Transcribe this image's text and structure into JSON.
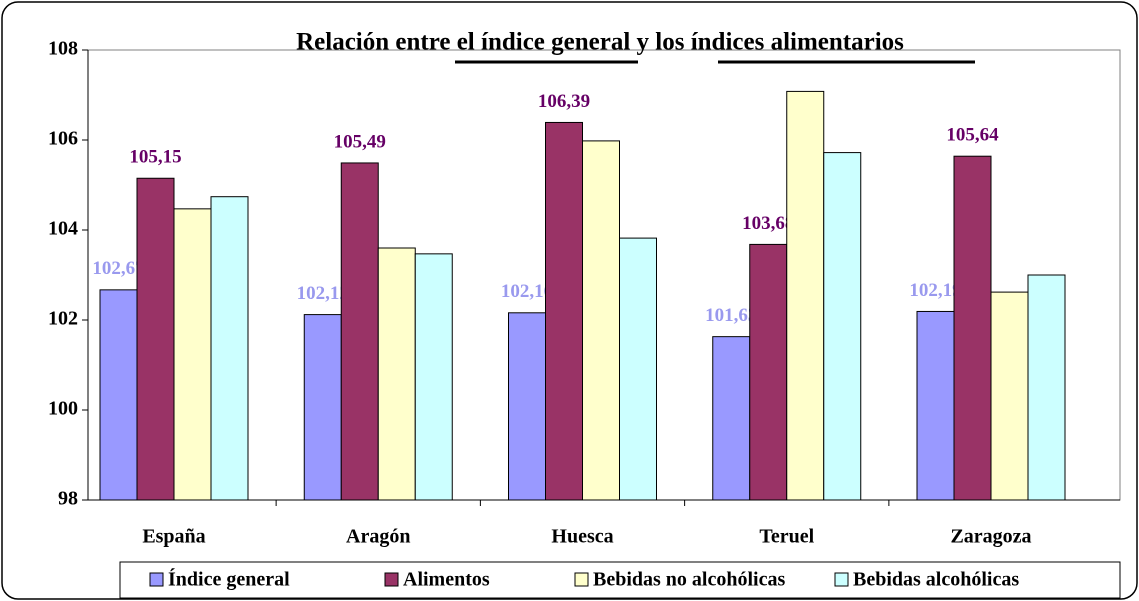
{
  "chart_data": {
    "type": "bar",
    "title": "Relación entre el índice general y los índices alimentarios",
    "categories": [
      "España",
      "Aragón",
      "Huesca",
      "Teruel",
      "Zaragoza"
    ],
    "series": [
      {
        "name": "Índice general",
        "color": "#9999ff",
        "label_color": "#9999ee",
        "values": [
          102.67,
          102.12,
          102.16,
          101.63,
          102.19
        ],
        "value_labels": [
          "102,67",
          "102,12",
          "102,16",
          "101,63",
          "102,19"
        ]
      },
      {
        "name": "Alimentos",
        "color": "#993366",
        "label_color": "#660066",
        "values": [
          105.15,
          105.49,
          106.39,
          103.68,
          105.64
        ],
        "value_labels": [
          "105,15",
          "105,49",
          "106,39",
          "103,68",
          "105,64"
        ]
      },
      {
        "name": "Bebidas no alcohólicas",
        "color": "#ffffcc",
        "values": [
          104.47,
          103.6,
          105.98,
          107.08,
          102.62
        ]
      },
      {
        "name": "Bebidas alcohólicas",
        "color": "#ccffff",
        "values": [
          104.74,
          103.47,
          103.82,
          105.72,
          103.0
        ]
      }
    ],
    "ylim": [
      98,
      108
    ],
    "yticks": [
      98,
      100,
      102,
      104,
      106,
      108
    ],
    "grid": false,
    "legend": "bottom"
  }
}
